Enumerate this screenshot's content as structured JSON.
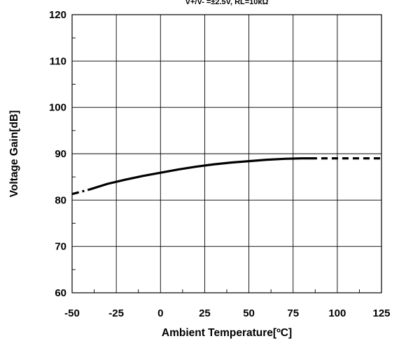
{
  "chart_data": {
    "type": "line",
    "title": "",
    "condition_note": "V+/V- =±2.5V, RL=10kΩ",
    "xlabel": "Ambient Temperature[ºC]",
    "ylabel": "Voltage Gain[dB]",
    "xlim": [
      -50,
      125
    ],
    "ylim": [
      60,
      120
    ],
    "x_ticks": [
      -50,
      -25,
      0,
      25,
      50,
      75,
      100,
      125
    ],
    "y_ticks": [
      60,
      70,
      80,
      90,
      100,
      110,
      120
    ],
    "x_tick_labels": [
      "-50",
      "-25",
      "0",
      "25",
      "50",
      "75",
      "100",
      "125"
    ],
    "y_tick_labels": [
      "60",
      "70",
      "80",
      "90",
      "100",
      "110",
      "120"
    ],
    "grid": true,
    "series": [
      {
        "x": [
          -50,
          -45,
          -40
        ],
        "y": [
          81.3,
          81.8,
          82.3
        ],
        "style": "dashdot",
        "color": "#000000"
      },
      {
        "x": [
          -40,
          -30,
          -20,
          -10,
          0,
          10,
          20,
          30,
          40,
          50,
          60,
          70,
          80,
          85
        ],
        "y": [
          82.3,
          83.5,
          84.4,
          85.2,
          85.9,
          86.6,
          87.2,
          87.7,
          88.1,
          88.4,
          88.7,
          88.9,
          89.0,
          89.0
        ],
        "style": "solid",
        "color": "#000000"
      },
      {
        "x": [
          85,
          95,
          105,
          115,
          125
        ],
        "y": [
          89.0,
          89.0,
          89.0,
          89.0,
          89.0
        ],
        "style": "dashed",
        "color": "#000000"
      }
    ]
  }
}
